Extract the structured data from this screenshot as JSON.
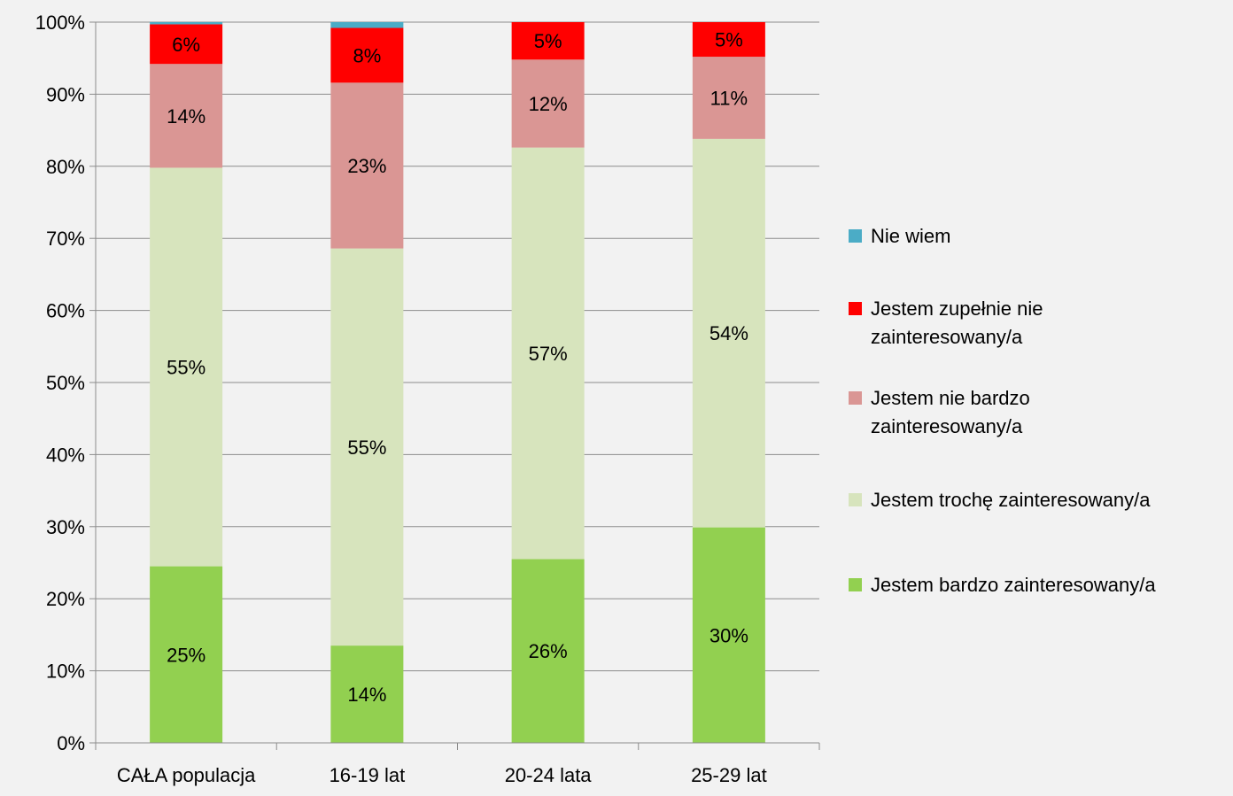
{
  "chart_data": {
    "type": "bar",
    "stacked": true,
    "title": "",
    "xlabel": "",
    "ylabel": "",
    "ylim": [
      0,
      100
    ],
    "ytick_values": [
      0,
      10,
      20,
      30,
      40,
      50,
      60,
      70,
      80,
      90,
      100
    ],
    "ytick_labels": [
      "0%",
      "10%",
      "20%",
      "30%",
      "40%",
      "50%",
      "60%",
      "70%",
      "80%",
      "90%",
      "100%"
    ],
    "grid": true,
    "legend_position": "right",
    "categories": [
      "CAŁA populacja",
      "16-19 lat",
      "20-24 lata",
      "25-29 lat"
    ],
    "series": [
      {
        "name": "Jestem bardzo zainteresowany/a",
        "color": "#92d050",
        "values": [
          24.5,
          13.5,
          25.5,
          29.9
        ],
        "labels": [
          "25%",
          "14%",
          "26%",
          "30%"
        ]
      },
      {
        "name": "Jestem trochę zainteresowany/a",
        "color": "#d7e4bd",
        "values": [
          55.3,
          55.1,
          57.1,
          53.9
        ],
        "labels": [
          "55%",
          "55%",
          "57%",
          "54%"
        ]
      },
      {
        "name": "Jestem nie bardzo zainteresowany/a",
        "color": "#da9694",
        "values": [
          14.4,
          23.0,
          12.2,
          11.4
        ],
        "labels": [
          "14%",
          "23%",
          "12%",
          "11%"
        ]
      },
      {
        "name": "Jestem zupełnie nie zainteresowany/a",
        "color": "#ff0000",
        "values": [
          5.5,
          7.6,
          5.2,
          4.8
        ],
        "labels": [
          "6%",
          "8%",
          "5%",
          "5%"
        ]
      },
      {
        "name": "Nie wiem",
        "color": "#4bacc6",
        "values": [
          0.3,
          0.8,
          0.0,
          0.0
        ],
        "labels": [
          "",
          "",
          "",
          ""
        ]
      }
    ],
    "legend_order": [
      "Nie wiem",
      "Jestem zupełnie nie zainteresowany/a",
      "Jestem nie bardzo zainteresowany/a",
      "Jestem trochę zainteresowany/a",
      "Jestem bardzo zainteresowany/a"
    ]
  }
}
